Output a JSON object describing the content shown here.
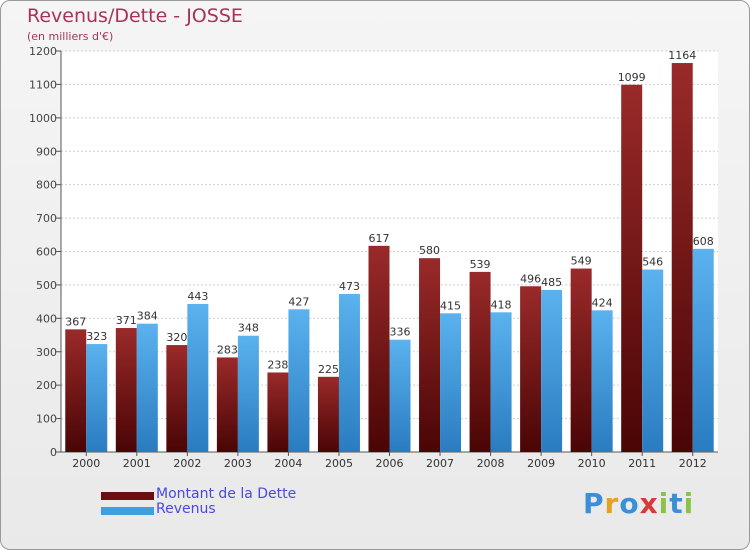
{
  "chart_data": {
    "type": "bar",
    "title": "Revenus/Dette - JOSSE",
    "subtitle": "(en milliers d'€)",
    "categories": [
      "2000",
      "2001",
      "2002",
      "2003",
      "2004",
      "2005",
      "2006",
      "2007",
      "2008",
      "2009",
      "2010",
      "2011",
      "2012"
    ],
    "series": [
      {
        "name": "Montant de la Dette",
        "color": "#7a1515",
        "values": [
          367,
          371,
          320,
          283,
          238,
          225,
          617,
          580,
          539,
          496,
          549,
          1099,
          1164
        ]
      },
      {
        "name": "Revenus",
        "color": "#3e9ee0",
        "values": [
          323,
          384,
          443,
          348,
          427,
          473,
          336,
          415,
          418,
          485,
          424,
          546,
          608
        ]
      }
    ],
    "ylim": [
      0,
      1200
    ],
    "yticks": [
      0,
      100,
      200,
      300,
      400,
      500,
      600,
      700,
      800,
      900,
      1000,
      1100,
      1200
    ],
    "grid": true,
    "legend": "bottom-left"
  },
  "legend": {
    "debt_label": "Montant de la Dette",
    "revenue_label": "Revenus"
  },
  "logo": {
    "text": "Proxiti"
  }
}
